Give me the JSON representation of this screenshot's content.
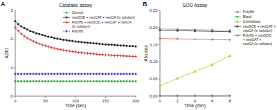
{
  "chart_data": [
    {
      "type": "line",
      "title": "Catalase assay",
      "x_label": "Time (sec)",
      "y_label": "A240",
      "annotations": [
        "A"
      ],
      "xlim": [
        0,
        200
      ],
      "ylim": [
        0,
        3
      ],
      "xticks": [
        0,
        50,
        100,
        150,
        200
      ],
      "yticks": [
        0,
        1,
        2,
        3
      ],
      "grid": false,
      "legend": "upper right",
      "x": [
        0,
        5,
        10,
        15,
        20,
        25,
        30,
        35,
        40,
        45,
        50,
        55,
        60,
        65,
        70,
        75,
        80,
        85,
        90,
        95,
        100,
        105,
        110,
        115,
        120,
        125,
        130,
        135,
        140,
        145,
        150,
        155,
        160,
        165,
        170,
        175,
        180,
        185,
        190,
        195,
        200
      ],
      "series": [
        {
          "name": "Control",
          "color": "#1aaa1a",
          "marker": "square",
          "line_style": "dotted",
          "values": [
            0.52,
            0.52,
            0.52,
            0.52,
            0.52,
            0.52,
            0.52,
            0.52,
            0.52,
            0.52,
            0.52,
            0.52,
            0.52,
            0.52,
            0.52,
            0.52,
            0.52,
            0.52,
            0.52,
            0.52,
            0.52,
            0.52,
            0.52,
            0.52,
            0.52,
            0.52,
            0.52,
            0.52,
            0.52,
            0.52,
            0.52,
            0.52,
            0.52,
            0.52,
            0.52,
            0.52,
            0.52,
            0.52,
            0.52,
            0.52,
            0.52
          ]
        },
        {
          "name": "neoSOD + neoCAT + neoCA (in solution)",
          "color": "#222222",
          "marker": "square",
          "line_style": "solid",
          "values": [
            2.62,
            2.52,
            2.44,
            2.38,
            2.33,
            2.28,
            2.24,
            2.2,
            2.17,
            2.14,
            2.11,
            2.08,
            2.06,
            2.03,
            2.01,
            1.99,
            1.97,
            1.96,
            1.94,
            1.93,
            1.91,
            1.9,
            1.89,
            1.88,
            1.87,
            1.86,
            1.85,
            1.84,
            1.83,
            1.82,
            1.81,
            1.8,
            1.8,
            1.79,
            1.78,
            1.77,
            1.77,
            1.76,
            1.75,
            1.75,
            1.74
          ],
          "errors": [
            0.04,
            0.04,
            0.04,
            0.04,
            0.04,
            0.04,
            0.04,
            0.04,
            0.04,
            0.04,
            0.04,
            0.04,
            0.04,
            0.04,
            0.04,
            0.04,
            0.04,
            0.04,
            0.04,
            0.04,
            0.04,
            0.04,
            0.04,
            0.04,
            0.04,
            0.04,
            0.04,
            0.04,
            0.04,
            0.04,
            0.04,
            0.04,
            0.04,
            0.04,
            0.04,
            0.04,
            0.04,
            0.04,
            0.04,
            0.04,
            0.04
          ]
        },
        {
          "name": "PolyHb + neoSOD + neoCAT + neoCA\n(in solution)",
          "color": "#cc3333",
          "marker": "plus",
          "line_style": "solid",
          "values": [
            2.4,
            2.28,
            2.18,
            2.1,
            2.03,
            1.97,
            1.92,
            1.87,
            1.83,
            1.79,
            1.76,
            1.73,
            1.7,
            1.68,
            1.65,
            1.63,
            1.61,
            1.59,
            1.58,
            1.56,
            1.55,
            1.53,
            1.52,
            1.51,
            1.5,
            1.49,
            1.48,
            1.47,
            1.46,
            1.45,
            1.44,
            1.44,
            1.43,
            1.42,
            1.42,
            1.41,
            1.41,
            1.4,
            1.4,
            1.39,
            1.39
          ],
          "errors": [
            0.04,
            0.04,
            0.04,
            0.04,
            0.04,
            0.04,
            0.04,
            0.04,
            0.04,
            0.04,
            0.04,
            0.04,
            0.04,
            0.04,
            0.04,
            0.04,
            0.04,
            0.04,
            0.04,
            0.04,
            0.04,
            0.04,
            0.04,
            0.04,
            0.04,
            0.04,
            0.04,
            0.04,
            0.04,
            0.04,
            0.04,
            0.04,
            0.04,
            0.04,
            0.04,
            0.04,
            0.04,
            0.04,
            0.04,
            0.04,
            0.04
          ]
        },
        {
          "name": "PolyHb",
          "color": "#3333cc",
          "marker": "square",
          "line_style": "dotted",
          "values": [
            0.78,
            0.78,
            0.78,
            0.78,
            0.78,
            0.78,
            0.78,
            0.78,
            0.78,
            0.78,
            0.78,
            0.78,
            0.78,
            0.78,
            0.78,
            0.78,
            0.78,
            0.78,
            0.78,
            0.78,
            0.78,
            0.78,
            0.78,
            0.78,
            0.78,
            0.78,
            0.78,
            0.78,
            0.78,
            0.78,
            0.78,
            0.78,
            0.78,
            0.78,
            0.78,
            0.78,
            0.78,
            0.78,
            0.78,
            0.78,
            0.78
          ]
        }
      ]
    },
    {
      "type": "line",
      "title": "SOD Assay",
      "x_label": "Time (min)",
      "y_label": "Absmax",
      "annotations": [
        "B"
      ],
      "xlim": [
        0,
        8
      ],
      "ylim": [
        0.0,
        0.25
      ],
      "xticks": [
        0,
        2,
        4,
        6,
        8
      ],
      "yticks": [
        {
          "value": 0.0,
          "label": "0.00"
        },
        {
          "value": 0.05,
          "label": "0.05"
        },
        {
          "value": 0.1,
          "label": "0.10"
        },
        {
          "value": 0.15,
          "label": "0.15"
        },
        {
          "value": 0.2,
          "label": "0.20"
        },
        {
          "value": 0.25,
          "label": "0.25"
        }
      ],
      "grid": false,
      "legend": "right",
      "x": [
        0,
        2,
        4,
        6,
        8
      ],
      "series": [
        {
          "name": "PolyHb",
          "color": "#999999",
          "marker": "circle",
          "line_style": "solid",
          "values": [
            0.196,
            0.195,
            0.194,
            0.193,
            0.192
          ]
        },
        {
          "name": "Blank",
          "color": "#22bb22",
          "marker": "square",
          "line_style": "solid",
          "values": [
            0.002,
            0.002,
            0.002,
            0.002,
            0.002
          ]
        },
        {
          "name": "Uninhibited",
          "color": "#bbbb22",
          "marker": "triangle",
          "line_style": "solid",
          "values": [
            0.03,
            0.052,
            0.072,
            0.092,
            0.118
          ]
        },
        {
          "name": "neoSOD + neoCAT +\nneoCA (in solution)",
          "color": "#333333",
          "marker": "square",
          "line_style": "solid",
          "values": [
            0.192,
            0.191,
            0.19,
            0.189,
            0.188
          ]
        },
        {
          "name": "PolyHb + neoSOD\n+ neoCAT +\nneoCA (in solution)",
          "color": "#cc5555",
          "marker": "plus",
          "line_style": "solid",
          "values": [
            0.168,
            0.167,
            0.166,
            0.165,
            0.164
          ]
        }
      ]
    }
  ]
}
